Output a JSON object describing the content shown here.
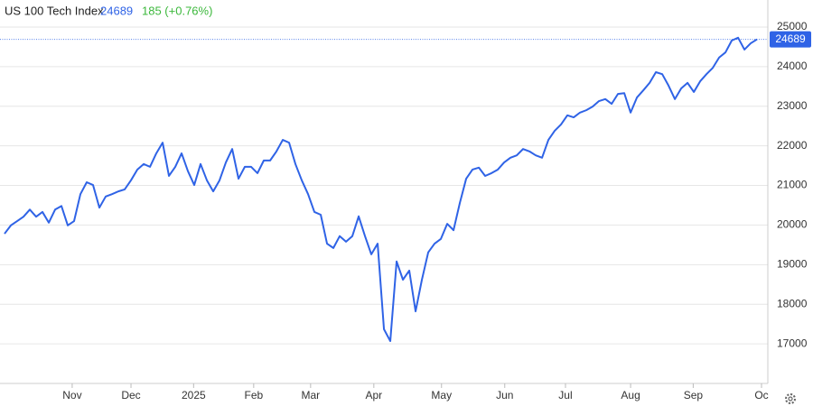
{
  "chart_data": {
    "type": "line",
    "title": "US 100 Tech Index",
    "last_value": 24689,
    "change": "185 (+0.76%)",
    "color": "#2f63e6",
    "change_color": "#3cb83c",
    "grid": true,
    "xlim": [
      0,
      120.7
    ],
    "xticks": [
      {
        "value": 10.7,
        "label": "Nov"
      },
      {
        "value": 20,
        "label": "Dec"
      },
      {
        "value": 29.9,
        "label": "2025"
      },
      {
        "value": 39.4,
        "label": "Feb"
      },
      {
        "value": 48.4,
        "label": "Mar"
      },
      {
        "value": 58.4,
        "label": "Apr"
      },
      {
        "value": 69.1,
        "label": "May"
      },
      {
        "value": 79.1,
        "label": "Jun"
      },
      {
        "value": 88.7,
        "label": "Jul"
      },
      {
        "value": 99,
        "label": "Aug"
      },
      {
        "value": 108.9,
        "label": "Sep"
      },
      {
        "value": 119.7,
        "label": "Oc"
      }
    ],
    "ylim": [
      16000,
      25500
    ],
    "yticks": [
      17000,
      18000,
      19000,
      20000,
      21000,
      22000,
      23000,
      24000,
      25000
    ],
    "values": [
      19780,
      19990,
      20100,
      20210,
      20390,
      20210,
      20330,
      20060,
      20390,
      20480,
      19990,
      20100,
      20780,
      21080,
      21010,
      20440,
      20720,
      20780,
      20850,
      20900,
      21130,
      21400,
      21540,
      21470,
      21810,
      22080,
      21240,
      21470,
      21810,
      21360,
      21010,
      21540,
      21130,
      20850,
      21130,
      21580,
      21920,
      21170,
      21470,
      21470,
      21310,
      21630,
      21630,
      21860,
      22150,
      22080,
      21540,
      21130,
      20780,
      20330,
      20260,
      19530,
      19420,
      19720,
      19580,
      19720,
      20220,
      19720,
      19260,
      19530,
      17370,
      17070,
      19080,
      18620,
      18850,
      17820,
      18620,
      19310,
      19530,
      19650,
      20030,
      19870,
      20560,
      21170,
      21400,
      21450,
      21240,
      21310,
      21400,
      21580,
      21700,
      21760,
      21920,
      21860,
      21760,
      21700,
      22150,
      22380,
      22540,
      22770,
      22720,
      22840,
      22900,
      22990,
      23130,
      23180,
      23060,
      23310,
      23330,
      22840,
      23220,
      23400,
      23590,
      23860,
      23810,
      23520,
      23180,
      23450,
      23590,
      23360,
      23630,
      23810,
      23970,
      24230,
      24360,
      24660,
      24730,
      24430,
      24590,
      24690
    ]
  }
}
